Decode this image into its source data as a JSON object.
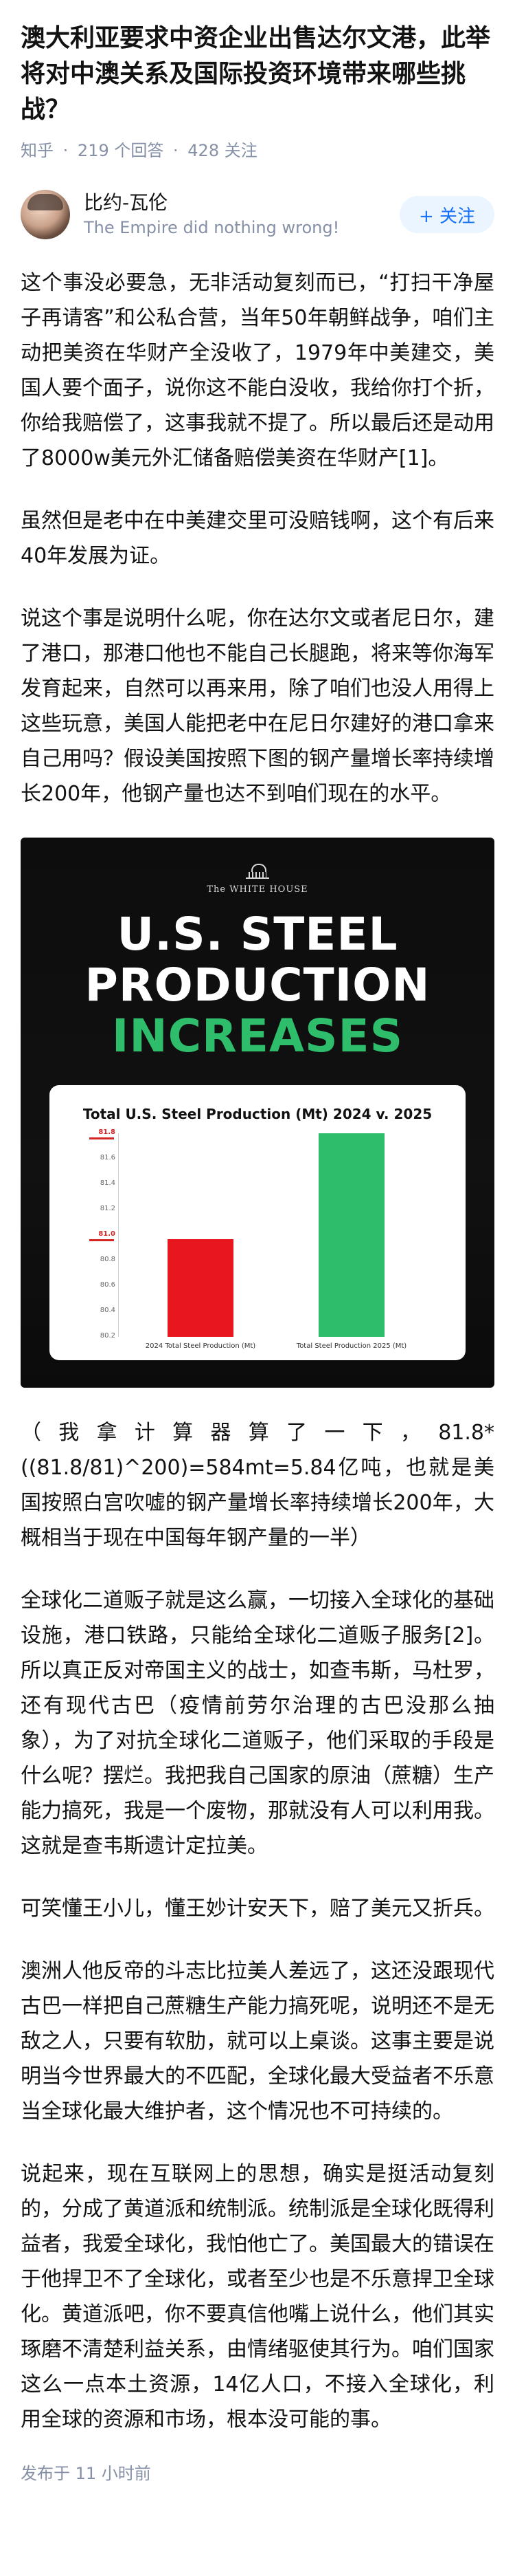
{
  "question": {
    "title": "澳大利亚要求中资企业出售达尔文港，此举将对中澳关系及国际投资环境带来哪些挑战？",
    "source": "知乎",
    "answers": "219 个回答",
    "follows": "428 关注",
    "separator": "·"
  },
  "author": {
    "name": "比约-瓦伦",
    "bio": "The Empire did nothing wrong!",
    "follow_label": "+ 关注"
  },
  "paragraphs": [
    "这个事没必要急，无非活动复刻而已，“打扫干净屋子再请客”和公私合营，当年50年朝鲜战争，咱们主动把美资在华财产全没收了，1979年中美建交，美国人要个面子，说你这不能白没收，我给你打个折，你给我赔偿了，这事我就不提了。所以最后还是动用了8000w美元外汇储备赔偿美资在华财产[1]。",
    "虽然但是老中在中美建交里可没赔钱啊，这个有后来40年发展为证。",
    "说这个事是说明什么呢，你在达尔文或者尼日尔，建了港口，那港口他也不能自己长腿跑，将来等你海军发育起来，自然可以再来用，除了咱们也没人用得上这些玩意，美国人能把老中在尼日尔建好的港口拿来自己用吗？假设美国按照下图的钢产量增长率持续增长200年，他钢产量也达不到咱们现在的水平。"
  ],
  "image": {
    "logo_text": "The WHITE HOUSE",
    "headline_1": "U.S. STEEL",
    "headline_2": "PRODUCTION",
    "headline_3": "INCREASES"
  },
  "chart_data": {
    "type": "bar",
    "title": "Total U.S. Steel Production (Mt) 2024 v. 2025",
    "categories": [
      "2024 Total Steel Production (Mt)",
      "Total Steel Production 2025 (Mt)"
    ],
    "values": [
      80.97,
      81.8
    ],
    "colors": [
      "#e8161e",
      "#2ebd6b"
    ],
    "ylim": [
      80.2,
      81.8
    ],
    "tick_labels": [
      "81.8",
      "81.6",
      "81.4",
      "81.2",
      "81.0",
      "80.8",
      "80.6",
      "80.4",
      "80.2"
    ],
    "highlight_ticks": [
      "81.8",
      "81.0"
    ]
  },
  "paragraphs_after": [
    "（我拿计算器算了一下，81.8*((81.8/81)^200)=584mt=5.84亿吨，也就是美国按照白宫吹嘘的钢产量增长率持续增长200年，大概相当于现在中国每年钢产量的一半）",
    "全球化二道贩子就是这么赢，一切接入全球化的基础设施，港口铁路，只能给全球化二道贩子服务[2]。所以真正反对帝国主义的战士，如查韦斯，马杜罗，还有现代古巴（疫情前劳尔治理的古巴没那么抽象），为了对抗全球化二道贩子，他们采取的手段是什么呢？摆烂。我把我自己国家的原油（蔗糖）生产能力搞死，我是一个废物，那就没有人可以利用我。这就是查韦斯遗计定拉美。",
    "可笑懂王小儿，懂王妙计安天下，赔了美元又折兵。",
    "澳洲人他反帝的斗志比拉美人差远了，这还没跟现代古巴一样把自己蔗糖生产能力搞死呢，说明还不是无敌之人，只要有软肋，就可以上桌谈。这事主要是说明当今世界最大的不匹配，全球化最大受益者不乐意当全球化最大维护者，这个情况也不可持续的。",
    "说起来，现在互联网上的思想，确实是挺活动复刻的，分成了黄道派和统制派。统制派是全球化既得利益者，我爱全球化，我怕他亡了。美国最大的错误在于他捍卫不了全球化，或者至少也是不乐意捍卫全球化。黄道派吧，你不要真信他嘴上说什么，他们其实琢磨不清楚利益关系，由情绪驱使其行为。咱们国家这么一点本土资源，14亿人口，不接入全球化，利用全球的资源和市场，根本没可能的事。"
  ],
  "footer": {
    "published": "发布于 11 小时前"
  }
}
